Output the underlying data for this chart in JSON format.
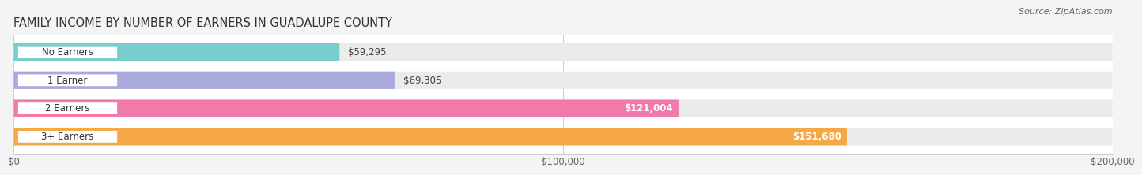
{
  "title": "FAMILY INCOME BY NUMBER OF EARNERS IN GUADALUPE COUNTY",
  "source": "Source: ZipAtlas.com",
  "categories": [
    "No Earners",
    "1 Earner",
    "2 Earners",
    "3+ Earners"
  ],
  "values": [
    59295,
    69305,
    121004,
    151680
  ],
  "bar_colors": [
    "#76cece",
    "#a9a9dd",
    "#f07aaa",
    "#f5a843"
  ],
  "value_labels": [
    "$59,295",
    "$69,305",
    "$121,004",
    "$151,680"
  ],
  "value_inside": [
    false,
    false,
    true,
    true
  ],
  "xlim": [
    0,
    200000
  ],
  "xticks": [
    0,
    100000,
    200000
  ],
  "xtick_labels": [
    "$0",
    "$100,000",
    "$200,000"
  ],
  "background_color": "#f4f4f4",
  "plot_background_color": "#ffffff",
  "bar_background_color": "#ebebeb",
  "title_fontsize": 10.5,
  "source_fontsize": 8,
  "bar_height": 0.62,
  "label_fontsize": 8.5,
  "value_fontsize": 8.5
}
